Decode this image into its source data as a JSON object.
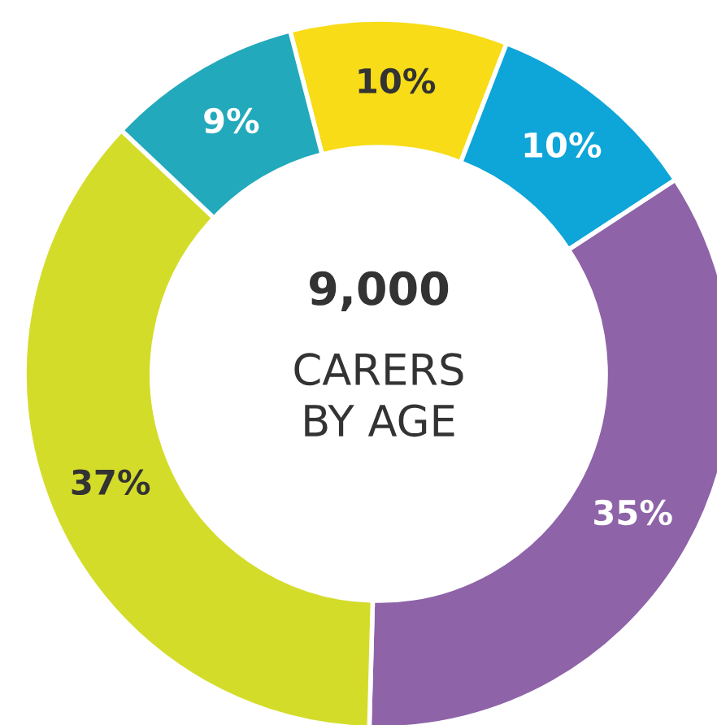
{
  "chart_data": {
    "type": "donut",
    "categories": [
      null,
      null,
      null,
      null,
      null
    ],
    "values": [
      10,
      10,
      35,
      37,
      9
    ],
    "colors": [
      "#f7dc17",
      "#0ea5d9",
      "#8e63a8",
      "#d4dc2a",
      "#22a9bb"
    ],
    "value_labels": [
      "10%",
      "10%",
      "35%",
      "37%",
      "9%"
    ],
    "annotations": [
      "9,000",
      "CARERS\nBY AGE"
    ]
  }
}
